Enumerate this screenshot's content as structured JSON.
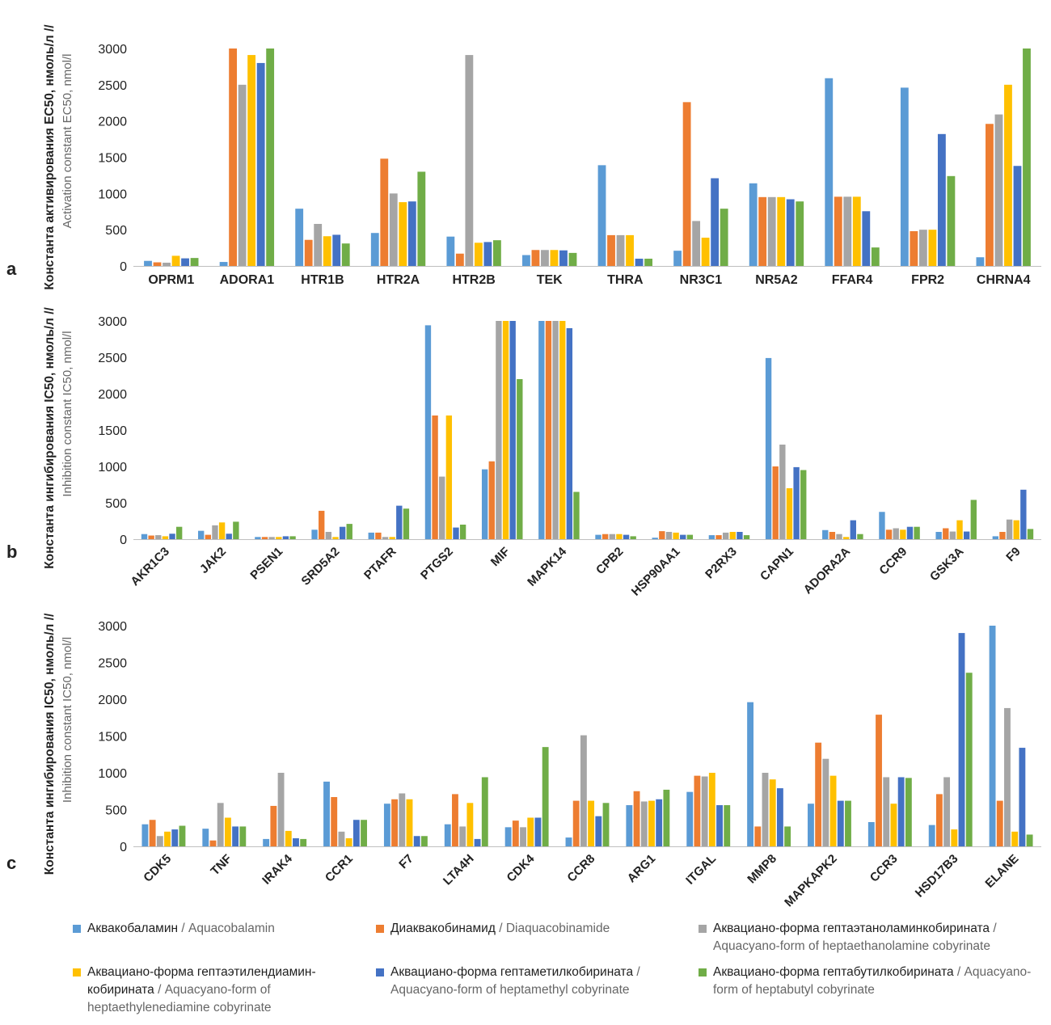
{
  "colors": [
    "#5b9bd5",
    "#ed7d31",
    "#a5a5a5",
    "#ffc000",
    "#4472c4",
    "#70ad47"
  ],
  "legend": [
    {
      "ru": "Аквакобаламин",
      "sep": " / ",
      "en": "Aquacobalamin"
    },
    {
      "ru": "Диаквакобинамид",
      "sep": " / ",
      "en": "Diaquacobinamide"
    },
    {
      "ru": "Аквациано-форма гептаэтаноламинкобирината",
      "sep": " / ",
      "en": "Aquacyano-form of heptaethanolamine cobyrinate"
    },
    {
      "ru": "Аквациано-форма гептаэтилендиамин-кобирината",
      "sep": " / ",
      "en": "Aquacyano-form of heptaethylenediamine cobyrinate"
    },
    {
      "ru": "Аквациано-форма гептаметилкобирината",
      "sep": " / ",
      "en": "Aquacyano-form of heptamethyl cobyrinate"
    },
    {
      "ru": "Аквациано-форма гептабутилкобирината",
      "sep": " / ",
      "en": "Aquacyano-form of heptabutyl cobyrinate"
    }
  ],
  "chart_data": [
    {
      "panel": "a",
      "type": "bar",
      "ylabel_ru": "Константа активирования EC50, нмоль/л //",
      "ylabel_en": "Activation constant EC50, nmol/l",
      "ylim": [
        0,
        3000
      ],
      "yticks": [
        0,
        500,
        1000,
        1500,
        2000,
        2500,
        3000
      ],
      "categories": [
        "OPRM1",
        "ADORA1",
        "HTR1B",
        "HTR2A",
        "HTR2B",
        "TEK",
        "THRA",
        "NR3C1",
        "NR5A2",
        "FFAR4",
        "FPR2",
        "CHRNA4"
      ],
      "series": [
        {
          "name": "Аквакобаламин / Aquacobalamin",
          "values": [
            70,
            55,
            790,
            455,
            405,
            150,
            1390,
            210,
            1140,
            2590,
            2460,
            120
          ]
        },
        {
          "name": "Диаквакобинамид / Diaquacobinamide",
          "values": [
            50,
            3000,
            360,
            1480,
            170,
            220,
            425,
            2260,
            950,
            955,
            480,
            1960
          ]
        },
        {
          "name": "Аквациано-форма гептаэтаноламинкобирината / Aquacyano-form of heptaethanolamine cobyrinate",
          "values": [
            45,
            2500,
            580,
            1000,
            2910,
            220,
            425,
            620,
            950,
            955,
            500,
            2090
          ]
        },
        {
          "name": "Аквациано-форма гептаэтилендиамин-кобирината / Aquacyano-form of heptaethylenediamine cobyrinate",
          "values": [
            140,
            2910,
            410,
            880,
            320,
            220,
            425,
            390,
            950,
            955,
            500,
            2500
          ]
        },
        {
          "name": "Аквациано-форма гептаметилкобирината / Aquacyano-form of heptamethyl cobyrinate",
          "values": [
            105,
            2800,
            430,
            890,
            330,
            215,
            100,
            1210,
            920,
            755,
            1820,
            1380
          ]
        },
        {
          "name": "Аквациано-форма гептабутилкобирината / Aquacyano-form of heptabutyl cobyrinate",
          "values": [
            110,
            3000,
            310,
            1300,
            355,
            180,
            100,
            790,
            890,
            255,
            1240,
            3000
          ]
        }
      ]
    },
    {
      "panel": "b",
      "type": "bar",
      "ylabel_ru": "Константа ингибирования IC50, нмоль/л //",
      "ylabel_en": "Inhibition constant IC50, nmol/l",
      "ylim": [
        0,
        3000
      ],
      "yticks": [
        0,
        500,
        1000,
        1500,
        2000,
        2500,
        3000
      ],
      "categories": [
        "AKR1C3",
        "JAK2",
        "PSEN1",
        "SRD5A2",
        "PTAFR",
        "PTGS2",
        "MIF",
        "MAPK14",
        "CPB2",
        "HSP90AA1",
        "P2RX3",
        "CAPN1",
        "ADORA2A",
        "CCR9",
        "GSK3A",
        "F9"
      ],
      "series": [
        {
          "name": "Аквакобаламин / Aquacobalamin",
          "values": [
            70,
            115,
            30,
            130,
            90,
            2940,
            960,
            3000,
            60,
            20,
            55,
            2490,
            125,
            375,
            100,
            40
          ]
        },
        {
          "name": "Диаквакобинамид / Diaquacobinamide",
          "values": [
            50,
            60,
            30,
            390,
            90,
            1700,
            1070,
            3000,
            70,
            110,
            55,
            1000,
            100,
            130,
            150,
            100
          ]
        },
        {
          "name": "Аквациано-форма гептаэтаноламинкобирината / Aquacyano-form of heptaethanolamine cobyrinate",
          "values": [
            55,
            190,
            30,
            100,
            30,
            860,
            3000,
            3000,
            70,
            100,
            90,
            1300,
            70,
            150,
            105,
            270
          ]
        },
        {
          "name": "Аквациано-форма гептаэтилендиамин-кобирината / Aquacyano-form of heptaethylenediamine cobyrinate",
          "values": [
            40,
            230,
            30,
            30,
            30,
            1700,
            3000,
            3000,
            70,
            90,
            100,
            700,
            30,
            130,
            260,
            260
          ]
        },
        {
          "name": "Аквациано-форма гептаметилкобирината / Aquacyano-form of heptamethyl cobyrinate",
          "values": [
            75,
            75,
            40,
            170,
            460,
            160,
            3000,
            2900,
            60,
            60,
            100,
            990,
            260,
            170,
            105,
            680
          ]
        },
        {
          "name": "Аквациано-форма гептабутилкобирината / Aquacyano-form of heptabutyl cobyrinate",
          "values": [
            170,
            240,
            40,
            210,
            420,
            200,
            2200,
            650,
            40,
            60,
            55,
            950,
            70,
            170,
            540,
            140
          ]
        }
      ]
    },
    {
      "panel": "c",
      "type": "bar",
      "ylabel_ru": "Константа ингибирования IC50, нмоль/л //",
      "ylabel_en": "Inhibition constant IC50, nmol/l",
      "ylim": [
        0,
        3000
      ],
      "yticks": [
        0,
        500,
        1000,
        1500,
        2000,
        2500,
        3000
      ],
      "categories": [
        "CDK5",
        "TNF",
        "IRAK4",
        "CCR1",
        "F7",
        "LTA4H",
        "CDK4",
        "CCR8",
        "ARG1",
        "ITGAL",
        "MMP8",
        "MAPKAPK2",
        "CCR3",
        "HSD17B3",
        "ELANE"
      ],
      "series": [
        {
          "name": "Аквакобаламин / Aquacobalamin",
          "values": [
            300,
            240,
            100,
            880,
            580,
            300,
            260,
            120,
            560,
            740,
            1960,
            580,
            330,
            290,
            3000
          ]
        },
        {
          "name": "Диаквакобинамид / Diaquacobinamide",
          "values": [
            360,
            80,
            550,
            670,
            640,
            710,
            350,
            620,
            750,
            960,
            270,
            1410,
            1790,
            710,
            620
          ]
        },
        {
          "name": "Аквациано-форма гептаэтаноламинкобирината / Aquacyano-form of heptaethanolamine cobyrinate",
          "values": [
            140,
            590,
            1000,
            200,
            720,
            270,
            260,
            1510,
            610,
            950,
            1000,
            1190,
            940,
            940,
            1880
          ]
        },
        {
          "name": "Аквациано-форма гептаэтилендиамин-кобирината / Aquacyano-form of heptaethylenediamine cobyrinate",
          "values": [
            200,
            390,
            210,
            110,
            640,
            590,
            390,
            620,
            620,
            1000,
            910,
            960,
            580,
            230,
            200
          ]
        },
        {
          "name": "Аквациано-форма гептаметилкобирината / Aquacyano-form of heptamethyl cobyrinate",
          "values": [
            230,
            270,
            110,
            360,
            140,
            100,
            390,
            410,
            640,
            560,
            790,
            620,
            940,
            2900,
            1340
          ]
        },
        {
          "name": "Аквациано-форма гептабутилкобирината / Aquacyano-form of heptabutyl cobyrinate",
          "values": [
            280,
            270,
            100,
            360,
            140,
            940,
            1350,
            590,
            770,
            560,
            270,
            620,
            930,
            2360,
            160
          ]
        }
      ]
    }
  ]
}
